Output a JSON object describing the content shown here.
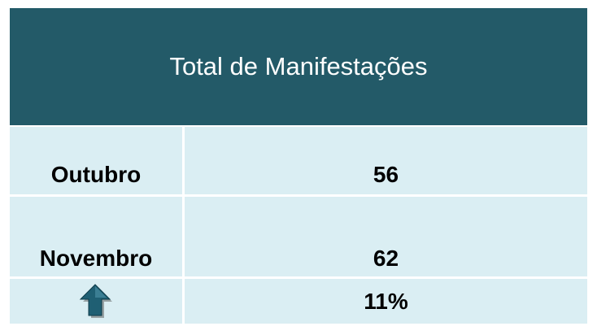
{
  "table": {
    "title": "Total de Manifestações",
    "rows": [
      {
        "label": "Outubro",
        "value": 56
      },
      {
        "label": "Novembro",
        "value": 62
      }
    ],
    "change": "11%"
  }
}
